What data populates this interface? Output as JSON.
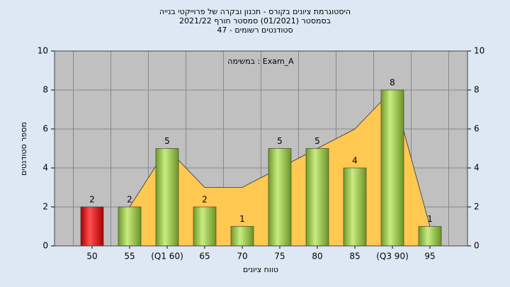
{
  "chart_data": {
    "type": "bar",
    "title": "היסטוגרמת ציונים בקורס - תכנון ובקרה של פרוייקטי בנייה",
    "subtitle": "בסמסטר  (01/2021)  סמסטר חורף  2021/22",
    "subtitle2": "סטודנטים רשומים - 47",
    "annotation": "במשימה : Exam_A",
    "xlabel": "טווח ציונים",
    "ylabel": "מספר סטודנטים",
    "categories": [
      "50",
      "55",
      "(Q1 60)",
      "65",
      "70",
      "75",
      "80",
      "85",
      "(Q3 90)",
      "95"
    ],
    "values": [
      2,
      2,
      5,
      2,
      1,
      5,
      5,
      4,
      8,
      1
    ],
    "colors": [
      "#e02020",
      "#9ccc4c",
      "#9ccc4c",
      "#9ccc4c",
      "#9ccc4c",
      "#9ccc4c",
      "#9ccc4c",
      "#9ccc4c",
      "#9ccc4c",
      "#9ccc4c"
    ],
    "area": {
      "color": "#ffc850",
      "values": [
        null,
        2,
        5,
        3,
        3,
        4,
        5,
        6,
        8,
        1
      ]
    },
    "ylim": [
      0,
      10
    ],
    "yticks": [
      0,
      2,
      4,
      6,
      8,
      10
    ],
    "y2lim": [
      0,
      10
    ],
    "y2ticks": [
      0,
      2,
      4,
      6,
      8,
      10
    ],
    "grid": true
  }
}
